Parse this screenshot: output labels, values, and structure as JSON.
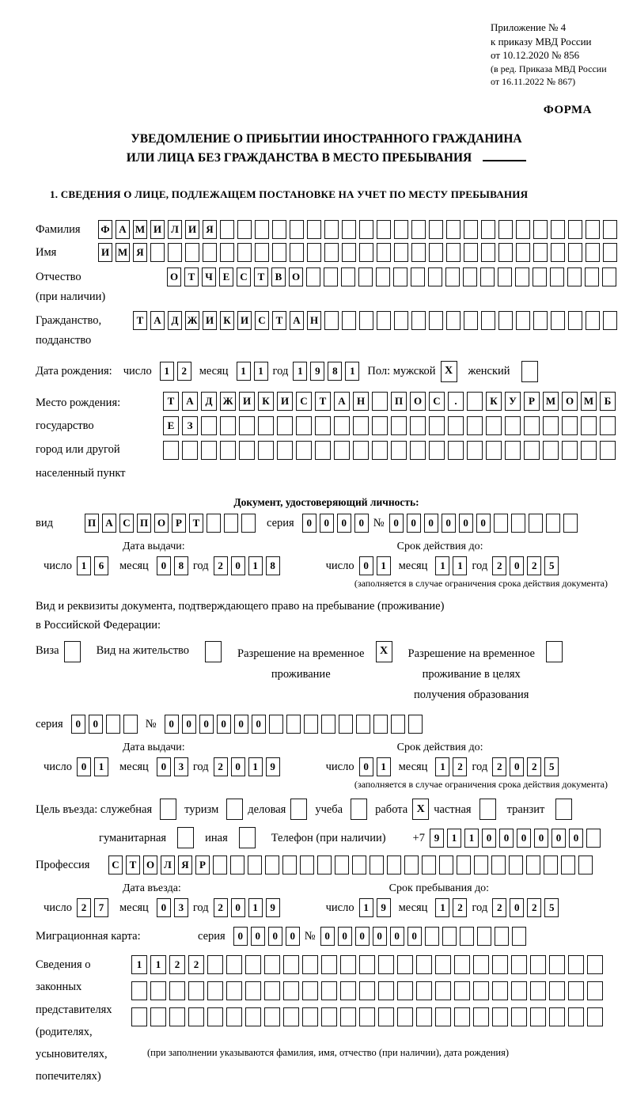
{
  "header": {
    "lines": [
      "Приложение № 4",
      "к приказу МВД России",
      "от 10.12.2020 № 856"
    ],
    "edition_lines": [
      "(в ред. Приказа МВД России",
      "от 16.11.2022 № 867)"
    ],
    "form_label": "ФОРМА"
  },
  "title": {
    "line1": "УВЕДОМЛЕНИЕ О ПРИБЫТИИ ИНОСТРАННОГО ГРАЖДАНИНА",
    "line2": "ИЛИ ЛИЦА БЕЗ ГРАЖДАНСТВА В МЕСТО ПРЕБЫВАНИЯ"
  },
  "section1": {
    "heading": "1. СВЕДЕНИЯ О ЛИЦЕ, ПОДЛЕЖАЩЕМ ПОСТАНОВКЕ НА УЧЕТ ПО МЕСТУ ПРЕБЫВАНИЯ"
  },
  "labels": {
    "surname": "Фамилия",
    "name": "Имя",
    "patronymic_l1": "Отчество",
    "patronymic_l2": "(при наличии)",
    "citizenship_l1": "Гражданство,",
    "citizenship_l2": "подданство",
    "birth_date": "Дата рождения:",
    "day": "число",
    "month": "месяц",
    "year": "год",
    "gender": "Пол: мужской",
    "female": "женский",
    "birthplace_l1": "Место рождения:",
    "birthplace_l2": "государство",
    "birthplace_l3": "город или другой",
    "birthplace_l4": "населенный пункт",
    "identity_doc": "Документ, удостоверяющий личность:",
    "doc_type": "вид",
    "series": "серия",
    "number": "№",
    "issue_date": "Дата выдачи:",
    "valid_until": "Срок действия до:",
    "restriction_note": "(заполняется в случае ограничения срока действия документа)",
    "residence_doc_l1": "Вид и реквизиты документа, подтверждающего право на пребывание (проживание)",
    "residence_doc_l2": "в Российской Федерации:",
    "visa": "Виза",
    "residence_permit": "Вид на жительство",
    "temp_residence_l1": "Разрешение на временное",
    "temp_residence_l2": "проживание",
    "temp_residence_edu_l1": "Разрешение на временное",
    "temp_residence_edu_l2": "проживание в целях",
    "temp_residence_edu_l3": "получения образования",
    "purpose": "Цель въезда: служебная",
    "tourism": "туризм",
    "business": "деловая",
    "study": "учеба",
    "work": "работа",
    "private": "частная",
    "transit": "транзит",
    "humanitarian": "гуманитарная",
    "other": "иная",
    "phone": "Телефон (при наличии)",
    "phone_prefix": "+7",
    "profession": "Профессия",
    "entry_date": "Дата въезда:",
    "stay_until": "Срок пребывания до:",
    "migration_card": "Миграционная карта:",
    "representatives_l1": "Сведения о",
    "representatives_l2": "законных",
    "representatives_l3": "представителях",
    "representatives_l4": "(родителях,",
    "representatives_l5": "усыновителях,",
    "representatives_l6": "попечителях)",
    "representatives_note": "(при заполнении указываются фамилия, имя, отчество (при наличии), дата рождения)"
  },
  "cells": {
    "surname": {
      "chars": "ФАМИЛИЯ",
      "total": 30
    },
    "name": {
      "chars": "ИМЯ",
      "total": 30
    },
    "patronymic": {
      "chars": "ОТЧЕСТВО",
      "total": 26
    },
    "citizenship": {
      "chars": "ТАДЖИКИСТАН",
      "total": 28
    },
    "birth_day": {
      "chars": "12",
      "total": 2
    },
    "birth_month": {
      "chars": "11",
      "total": 2
    },
    "birth_year": {
      "chars": "1981",
      "total": 4
    },
    "gender_male": {
      "chars": "X",
      "total": 1
    },
    "gender_female": {
      "chars": "",
      "total": 1
    },
    "birthplace1": {
      "chars": "ТАДЖИКИСТАН ПОС. КУРМОМБ",
      "total": 24
    },
    "birthplace2": {
      "chars": "ЕЗ",
      "total": 24
    },
    "birthplace3": {
      "chars": "",
      "total": 24
    },
    "doc_type": {
      "chars": "ПАСПОРТ",
      "total": 10
    },
    "doc_series": {
      "chars": "0000",
      "total": 4
    },
    "doc_number": {
      "chars": "000000",
      "total": 11
    },
    "doc_issue_day": {
      "chars": "16",
      "total": 2
    },
    "doc_issue_month": {
      "chars": "08",
      "total": 2
    },
    "doc_issue_year": {
      "chars": "2018",
      "total": 4
    },
    "doc_valid_day": {
      "chars": "01",
      "total": 2
    },
    "doc_valid_month": {
      "chars": "11",
      "total": 2
    },
    "doc_valid_year": {
      "chars": "2025",
      "total": 4
    },
    "visa_check": {
      "chars": "",
      "total": 1
    },
    "residence_permit_check": {
      "chars": "",
      "total": 1
    },
    "temp_residence_check": {
      "chars": "X",
      "total": 1
    },
    "temp_residence_edu_check": {
      "chars": "",
      "total": 1
    },
    "res_series": {
      "chars": "00",
      "total": 4
    },
    "res_number": {
      "chars": "000000",
      "total": 15
    },
    "res_issue_day": {
      "chars": "01",
      "total": 2
    },
    "res_issue_month": {
      "chars": "03",
      "total": 2
    },
    "res_issue_year": {
      "chars": "2019",
      "total": 4
    },
    "res_valid_day": {
      "chars": "01",
      "total": 2
    },
    "res_valid_month": {
      "chars": "12",
      "total": 2
    },
    "res_valid_year": {
      "chars": "2025",
      "total": 4
    },
    "purpose_official": {
      "chars": "",
      "total": 1
    },
    "purpose_tourism": {
      "chars": "",
      "total": 1
    },
    "purpose_business": {
      "chars": "",
      "total": 1
    },
    "purpose_study": {
      "chars": "",
      "total": 1
    },
    "purpose_work": {
      "chars": "X",
      "total": 1
    },
    "purpose_private": {
      "chars": "",
      "total": 1
    },
    "purpose_transit": {
      "chars": "",
      "total": 1
    },
    "purpose_humanitarian": {
      "chars": "",
      "total": 1
    },
    "purpose_other": {
      "chars": "",
      "total": 1
    },
    "phone": {
      "chars": "911000000",
      "total": 10
    },
    "profession": {
      "chars": "СТОЛЯР",
      "total": 28
    },
    "entry_day": {
      "chars": "27",
      "total": 2
    },
    "entry_month": {
      "chars": "03",
      "total": 2
    },
    "entry_year": {
      "chars": "2019",
      "total": 4
    },
    "stay_day": {
      "chars": "19",
      "total": 2
    },
    "stay_month": {
      "chars": "12",
      "total": 2
    },
    "stay_year": {
      "chars": "2025",
      "total": 4
    },
    "mig_series": {
      "chars": "0000",
      "total": 4
    },
    "mig_number": {
      "chars": "000000",
      "total": 12
    },
    "representatives1": {
      "chars": "1122",
      "total": 25
    },
    "representatives2": {
      "chars": "",
      "total": 25
    },
    "representatives3": {
      "chars": "",
      "total": 25
    }
  }
}
